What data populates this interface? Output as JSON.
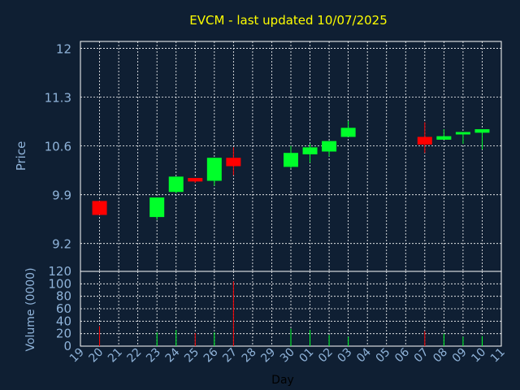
{
  "chart_data": [
    {
      "type": "candlestick",
      "title": "EVCM - last updated 10/07/2025",
      "ylabel": "Price",
      "ylim": [
        8.8,
        12.1
      ],
      "yticks": [
        9.2,
        9.9,
        10.6,
        11.3,
        12
      ],
      "grid": true,
      "colors": {
        "up": "#00ff2a",
        "down": "#ff0000",
        "title": "#ffff00",
        "axis_text": "#8fb3d9"
      },
      "candles": [
        {
          "day": "20",
          "open": 9.81,
          "close": 9.61,
          "high": 9.81,
          "low": 9.61
        },
        {
          "day": "23",
          "open": 9.58,
          "close": 9.86,
          "high": 9.86,
          "low": 9.54
        },
        {
          "day": "24",
          "open": 9.94,
          "close": 10.16,
          "high": 10.16,
          "low": 9.92
        },
        {
          "day": "25",
          "open": 10.14,
          "close": 10.09,
          "high": 10.14,
          "low": 10.07
        },
        {
          "day": "26",
          "open": 10.1,
          "close": 10.43,
          "high": 10.43,
          "low": 10.03
        },
        {
          "day": "27",
          "open": 10.43,
          "close": 10.31,
          "high": 10.58,
          "low": 10.18
        },
        {
          "day": "30",
          "open": 10.3,
          "close": 10.5,
          "high": 10.6,
          "low": 10.28
        },
        {
          "day": "01",
          "open": 10.48,
          "close": 10.58,
          "high": 10.63,
          "low": 10.36
        },
        {
          "day": "02",
          "open": 10.52,
          "close": 10.67,
          "high": 10.67,
          "low": 10.45
        },
        {
          "day": "03",
          "open": 10.73,
          "close": 10.86,
          "high": 10.96,
          "low": 10.73
        },
        {
          "day": "07",
          "open": 10.73,
          "close": 10.62,
          "high": 10.94,
          "low": 10.5
        },
        {
          "day": "08",
          "open": 10.69,
          "close": 10.74,
          "high": 10.84,
          "low": 10.69
        },
        {
          "day": "09",
          "open": 10.78,
          "close": 10.8,
          "high": 10.8,
          "low": 10.63
        },
        {
          "day": "10",
          "open": 10.79,
          "close": 10.84,
          "high": 10.84,
          "low": 10.55
        }
      ]
    },
    {
      "type": "bar",
      "ylabel": "Volume (0000)",
      "xlabel": "Day",
      "ylim": [
        0,
        120
      ],
      "yticks": [
        0,
        20,
        40,
        60,
        80,
        100,
        120
      ],
      "grid": true,
      "categories": [
        "19",
        "20",
        "21",
        "22",
        "23",
        "24",
        "25",
        "26",
        "27",
        "28",
        "29",
        "30",
        "01",
        "02",
        "03",
        "04",
        "05",
        "06",
        "07",
        "08",
        "09",
        "10",
        "11"
      ],
      "values": [
        0,
        32,
        0,
        0,
        22,
        26,
        21,
        22,
        104,
        0,
        0,
        28,
        26,
        18,
        15,
        0,
        0,
        0,
        24,
        20,
        15,
        16,
        0
      ],
      "bar_colors": [
        "",
        "down",
        "",
        "",
        "up",
        "up",
        "down",
        "up",
        "down",
        "",
        "",
        "up",
        "up",
        "up",
        "up",
        "",
        "",
        "",
        "down",
        "up",
        "up",
        "up",
        ""
      ]
    }
  ]
}
